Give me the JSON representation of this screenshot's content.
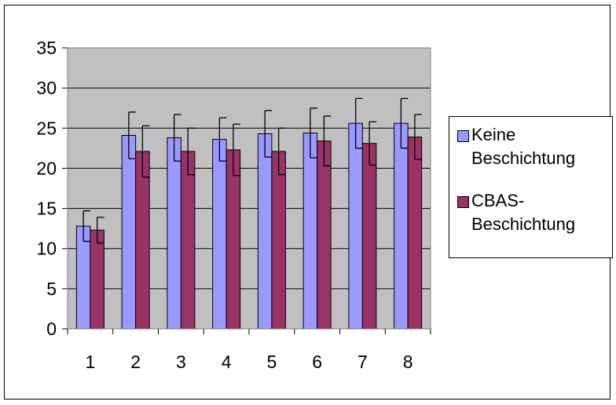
{
  "chart_data": {
    "type": "bar",
    "title": "",
    "xlabel": "",
    "ylabel": "",
    "categories": [
      "1",
      "2",
      "3",
      "4",
      "5",
      "6",
      "7",
      "8"
    ],
    "ylim": [
      0,
      35
    ],
    "yticks": [
      "0",
      "5",
      "10",
      "15",
      "20",
      "25",
      "30",
      "35"
    ],
    "grid": true,
    "plot_background": "#c0c0c0",
    "legend_position": "right",
    "series": [
      {
        "name": "Keine Beschichtung",
        "color": "#9999ff",
        "values": [
          12.8,
          24.1,
          23.8,
          23.6,
          24.3,
          24.4,
          25.6,
          25.6
        ],
        "error": [
          1.9,
          2.9,
          2.9,
          2.7,
          2.9,
          3.1,
          3.1,
          3.1
        ]
      },
      {
        "name": "CBAS-Beschichtung",
        "color": "#993366",
        "values": [
          12.3,
          22.1,
          22.1,
          22.3,
          22.1,
          23.4,
          23.1,
          23.9
        ],
        "error": [
          1.6,
          3.2,
          2.9,
          3.2,
          2.9,
          3.1,
          2.7,
          2.8
        ]
      }
    ],
    "legend": [
      {
        "label": "Keine Beschichtung"
      },
      {
        "label": "CBAS-Beschichtung"
      }
    ]
  }
}
